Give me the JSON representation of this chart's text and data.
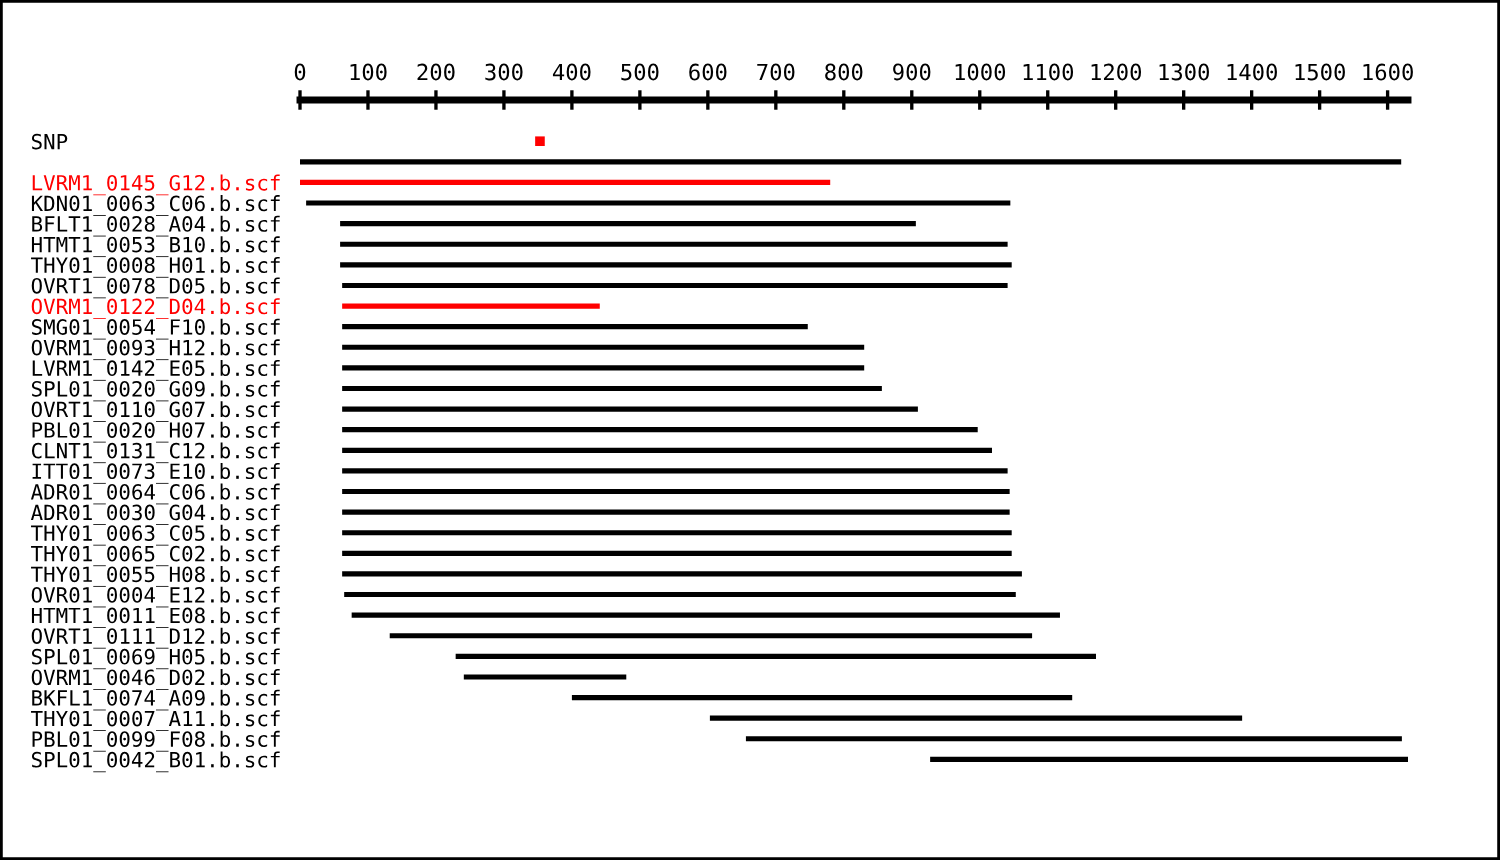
{
  "chart_data": {
    "type": "bar",
    "orientation": "horizontal",
    "xlim": [
      0,
      1630
    ],
    "xticks": [
      0,
      100,
      200,
      300,
      400,
      500,
      600,
      700,
      800,
      900,
      1000,
      1100,
      1200,
      1300,
      1400,
      1500,
      1600
    ],
    "grid": false,
    "legend": false,
    "categories": [
      "SNP",
      null,
      "LVRM1_0145_G12.b.scf",
      "KDN01_0063_C06.b.scf",
      "BFLT1_0028_A04.b.scf",
      "HTMT1_0053_B10.b.scf",
      "THY01_0008_H01.b.scf",
      "OVRT1_0078_D05.b.scf",
      "OVRM1_0122_D04.b.scf",
      "SMG01_0054_F10.b.scf",
      "OVRM1_0093_H12.b.scf",
      "LVRM1_0142_E05.b.scf",
      "SPL01_0020_G09.b.scf",
      "OVRT1_0110_G07.b.scf",
      "PBL01_0020_H07.b.scf",
      "CLNT1_0131_C12.b.scf",
      "ITT01_0073_E10.b.scf",
      "ADR01_0064_C06.b.scf",
      "ADR01_0030_G04.b.scf",
      "THY01_0063_C05.b.scf",
      "THY01_0065_C02.b.scf",
      "THY01_0055_H08.b.scf",
      "OVR01_0004_E12.b.scf",
      "HTMT1_0011_E08.b.scf",
      "OVRT1_0111_D12.b.scf",
      "SPL01_0069_H05.b.scf",
      "OVRM1_0046_D02.b.scf",
      "BKFL1_0074_A09.b.scf",
      "THY01_0007_A11.b.scf",
      "PBL01_0099_F08.b.scf",
      "SPL01_0042_B01.b.scf"
    ],
    "series": [
      {
        "type": "scatter",
        "marker": "square",
        "color": "#ff0000",
        "values": [
          353,
          null,
          null,
          null,
          null,
          null,
          null,
          null,
          null,
          null,
          null,
          null,
          null,
          null,
          null,
          null,
          null,
          null,
          null,
          null,
          null,
          null,
          null,
          null,
          null,
          null,
          null,
          null,
          null,
          null,
          null
        ]
      },
      {
        "base": [
          null,
          0,
          0,
          9,
          59,
          59,
          59,
          62,
          62,
          62,
          62,
          62,
          62,
          62,
          62,
          62,
          62,
          62,
          62,
          62,
          62,
          62,
          65,
          76,
          132,
          229,
          241,
          400,
          603,
          656,
          927
        ],
        "values": [
          null,
          1620,
          780,
          1036,
          847,
          982,
          988,
          979,
          379,
          685,
          768,
          768,
          794,
          847,
          935,
          956,
          979,
          982,
          982,
          985,
          985,
          1000,
          988,
          1042,
          945,
          942,
          239,
          736,
          783,
          965,
          703
        ],
        "colors": [
          "#000000",
          "#000000",
          "#ff0000",
          "#000000",
          "#000000",
          "#000000",
          "#000000",
          "#000000",
          "#ff0000",
          "#000000",
          "#000000",
          "#000000",
          "#000000",
          "#000000",
          "#000000",
          "#000000",
          "#000000",
          "#000000",
          "#000000",
          "#000000",
          "#000000",
          "#000000",
          "#000000",
          "#000000",
          "#000000",
          "#000000",
          "#000000",
          "#000000",
          "#000000",
          "#000000",
          "#000000"
        ]
      }
    ]
  }
}
